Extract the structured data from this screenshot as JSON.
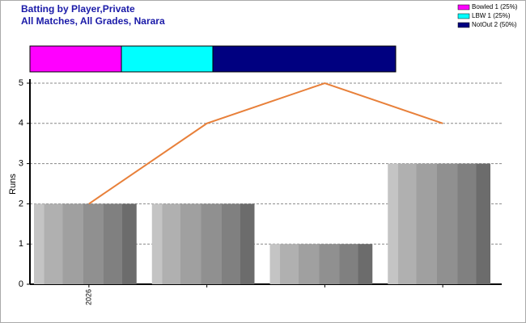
{
  "chart_data": [
    {
      "type": "stacked-bar-h",
      "title": "Batting by Player,Private",
      "subtitle": "All Matches, All Grades, Narara",
      "series": [
        {
          "name": "Bowled 1 (25%)",
          "color": "#ff00ff",
          "values": [
            1
          ]
        },
        {
          "name": "LBW 1 (25%)",
          "color": "#00ffff",
          "values": [
            1
          ]
        },
        {
          "name": "NotOut 2 (50%)",
          "color": "#000080",
          "values": [
            2
          ]
        }
      ]
    },
    {
      "type": "bar-line",
      "y_label": "Runs",
      "categories": [
        "2026",
        null,
        null,
        null
      ],
      "series": [
        {
          "type": "bar",
          "color": "#999999",
          "values": [
            2,
            2,
            1,
            3
          ]
        },
        {
          "type": "line",
          "color": "#e8803a",
          "values": [
            2,
            4,
            5,
            4
          ]
        }
      ],
      "ylim": [
        0,
        5
      ],
      "yticks": [
        0,
        1,
        2,
        3,
        4,
        5
      ],
      "grid": true
    }
  ]
}
